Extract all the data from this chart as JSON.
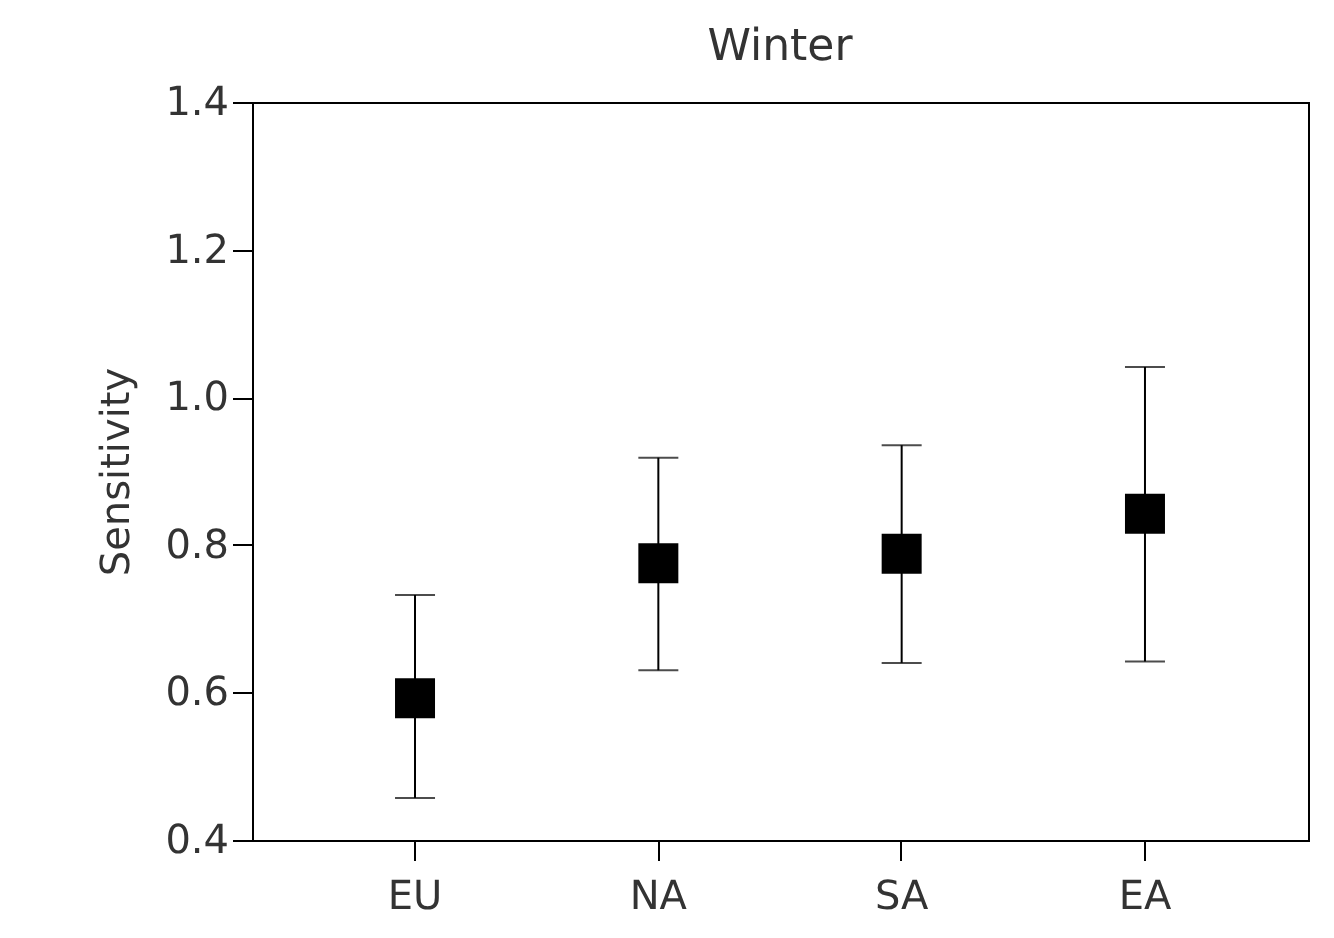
{
  "chart_data": {
    "type": "scatter",
    "title": "Winter",
    "ylabel": "Sensitivity",
    "categories": [
      "EU",
      "NA",
      "SA",
      "EA"
    ],
    "series": [
      {
        "color": "#000000",
        "values": [
          0.592,
          0.775,
          0.788,
          0.842
        ],
        "errors": [
          [
            0.457,
            0.732
          ],
          [
            0.63,
            0.918
          ],
          [
            0.64,
            0.935
          ],
          [
            0.642,
            1.041
          ]
        ]
      }
    ],
    "marker": "square",
    "ylim": [
      0.4,
      1.4
    ],
    "yticks": [
      0.4,
      0.6,
      0.8,
      {
        "value": 1.0,
        "label": "1.0"
      },
      1.2,
      1.4
    ],
    "grid": false
  }
}
